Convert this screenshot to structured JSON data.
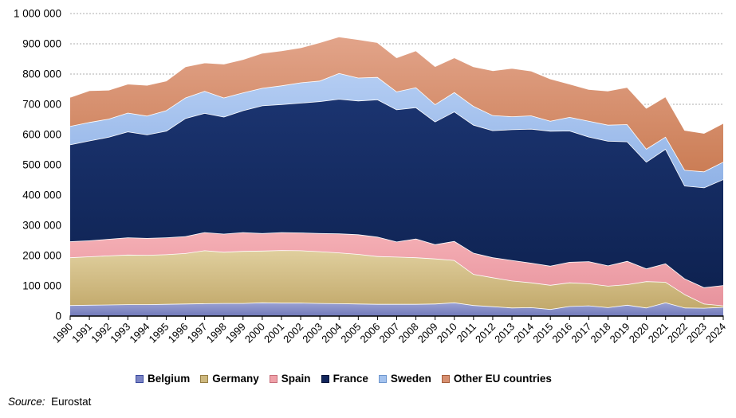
{
  "chart_data": {
    "type": "area",
    "stacked": true,
    "x": [
      1990,
      1991,
      1992,
      1993,
      1994,
      1995,
      1996,
      1997,
      1998,
      1999,
      2000,
      2001,
      2002,
      2003,
      2004,
      2005,
      2006,
      2007,
      2008,
      2009,
      2010,
      2011,
      2012,
      2013,
      2014,
      2015,
      2016,
      2017,
      2018,
      2019,
      2020,
      2021,
      2022,
      2023,
      2024
    ],
    "ylim": [
      0,
      1000000
    ],
    "ytick_step": 100000,
    "ytick_labels": [
      "0",
      "100 000",
      "200 000",
      "300 000",
      "400 000",
      "500 000",
      "600 000",
      "700 000",
      "800 000",
      "900 000",
      "1 000 000"
    ],
    "grid": "horizontal-dashed",
    "legend_position": "bottom-left",
    "series": [
      {
        "name": "Belgium",
        "color": "#7B84C4",
        "gradient_top": "#9BA2D4",
        "gradient_bottom": "#7179B9",
        "border": "#3A4A9F",
        "values": [
          36000,
          37000,
          38000,
          39000,
          39000,
          40000,
          41000,
          42000,
          43000,
          43000,
          45000,
          44000,
          44000,
          43000,
          42000,
          41000,
          40000,
          40000,
          40000,
          41000,
          45000,
          36000,
          32000,
          28000,
          29000,
          23000,
          33000,
          35000,
          29000,
          37000,
          28000,
          45000,
          28000,
          27000,
          30000
        ]
      },
      {
        "name": "Germany",
        "color": "#CDB87E",
        "gradient_top": "#E0CF9E",
        "gradient_bottom": "#C2A96B",
        "border": "#967F45",
        "values": [
          158000,
          160000,
          162000,
          164000,
          163000,
          164000,
          167000,
          175000,
          169000,
          172000,
          171000,
          174000,
          173000,
          171000,
          168000,
          164000,
          158000,
          156000,
          154000,
          149000,
          140000,
          103000,
          96000,
          89000,
          82000,
          80000,
          78000,
          73000,
          71000,
          68000,
          87000,
          68000,
          44000,
          14000,
          5000
        ]
      },
      {
        "name": "Spain",
        "color": "#EFA0A8",
        "gradient_top": "#F5AFB5",
        "gradient_bottom": "#E7939D",
        "border": "#C76F7B",
        "values": [
          53000,
          53000,
          55000,
          57000,
          56000,
          56000,
          56000,
          60000,
          60000,
          62000,
          58000,
          59000,
          59000,
          60000,
          63000,
          65000,
          64000,
          50000,
          62000,
          47000,
          63000,
          70000,
          66000,
          68000,
          65000,
          63000,
          68000,
          73000,
          67000,
          77000,
          42000,
          61000,
          52000,
          54000,
          67000
        ]
      },
      {
        "name": "France",
        "color": "#13265C",
        "gradient_top": "#1B3470",
        "gradient_bottom": "#0E2251",
        "border": "#071537",
        "values": [
          320000,
          330000,
          337000,
          350000,
          342000,
          352000,
          390000,
          394000,
          387000,
          403000,
          422000,
          423000,
          429000,
          436000,
          445000,
          442000,
          454000,
          437000,
          434000,
          406000,
          428000,
          423000,
          420000,
          432000,
          443000,
          446000,
          434000,
          412000,
          412000,
          395000,
          353000,
          379000,
          307000,
          330000,
          350000
        ]
      },
      {
        "name": "Sweden",
        "color": "#A3C2EE",
        "gradient_top": "#B4CDF3",
        "gradient_bottom": "#90B2E6",
        "border": "#6E96CE",
        "values": [
          61000,
          61000,
          60000,
          62000,
          62000,
          68000,
          68000,
          73000,
          63000,
          59000,
          58000,
          62000,
          67000,
          68000,
          85000,
          76000,
          74000,
          59000,
          66000,
          57000,
          64000,
          62000,
          50000,
          43000,
          44000,
          33000,
          45000,
          52000,
          53000,
          57000,
          43000,
          40000,
          52000,
          53000,
          58000
        ]
      },
      {
        "name": "Other EU countries",
        "color": "#D78F70",
        "gradient_top": "#E2A48A",
        "gradient_bottom": "#CB7D55",
        "border": "#A65F3D",
        "values": [
          96000,
          105000,
          96000,
          96000,
          102000,
          98000,
          103000,
          94000,
          112000,
          110000,
          116000,
          116000,
          116000,
          127000,
          121000,
          127000,
          115000,
          113000,
          122000,
          126000,
          115000,
          131000,
          148000,
          160000,
          148000,
          140000,
          110000,
          105000,
          113000,
          123000,
          135000,
          133000,
          132000,
          127000,
          128000
        ]
      }
    ]
  },
  "source": {
    "prefix": "Source:",
    "text": "Eurostat"
  }
}
